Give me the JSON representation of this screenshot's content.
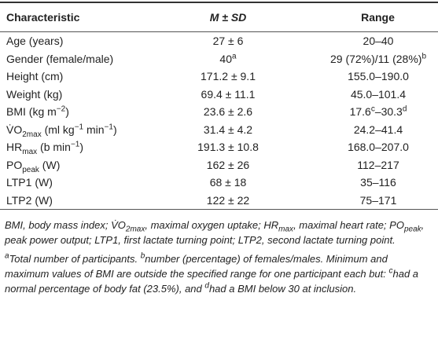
{
  "table": {
    "header": [
      "Characteristic",
      "M ± SD",
      "Range"
    ],
    "rows": [
      [
        "Age (years)",
        "27 ± 6",
        "20–40"
      ],
      [
        "Gender (female/male)",
        [
          "40",
          "a"
        ],
        [
          "29 (72%)/11 (28%)",
          "b"
        ]
      ],
      [
        "Height (cm)",
        "171.2 ± 9.1",
        "155.0–190.0"
      ],
      [
        "Weight (kg)",
        "69.4 ± 11.1",
        "45.0–101.4"
      ],
      [
        [
          "BMI (kg m",
          "−2",
          ")"
        ],
        "23.6 ± 2.6",
        [
          "17.6",
          "c",
          "–30.3",
          "d"
        ]
      ],
      [
        [
          "V̇O",
          "2max",
          " (ml kg",
          "−1",
          " min",
          "−1",
          ")"
        ],
        "31.4 ± 4.2",
        "24.2–41.4"
      ],
      [
        [
          "HR",
          "max",
          " (b min",
          "−1",
          ")"
        ],
        "191.3 ± 10.8",
        "168.0–207.0"
      ],
      [
        [
          "PO",
          "peak",
          " (W)"
        ],
        "162 ± 26",
        "112–217"
      ],
      [
        "LTP1 (W)",
        "68 ± 18",
        "35–116"
      ],
      [
        "LTP2 (W)",
        "122 ± 22",
        "75–171"
      ]
    ]
  },
  "footnotes": [
    [
      "BMI, body mass index; V̇O",
      "2max",
      ", maximal oxygen uptake; HR",
      "max",
      ", maximal heart rate; PO",
      "peak",
      ", peak power output; LTP1, first lactate turning point; LTP2, second lactate turning point."
    ],
    [
      "a",
      "Total number of participants. ",
      "b",
      "number (percentage) of females/males. Minimum and maximum values of BMI are outside the specified range for one participant each but: ",
      "c",
      "had a normal percentage of body fat (23.5%), and ",
      "d",
      "had a BMI below 30 at inclusion."
    ]
  ]
}
